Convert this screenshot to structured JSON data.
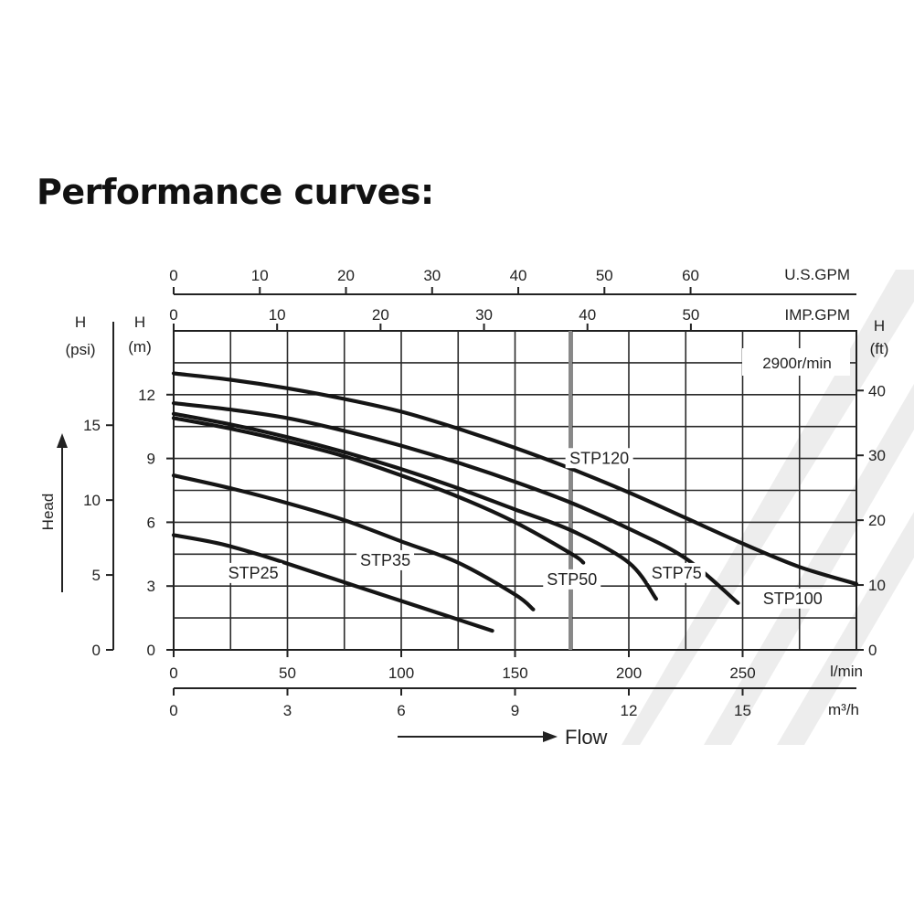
{
  "title": "Performance curves:",
  "chart_data": {
    "type": "line",
    "speed_label": "2900r/min",
    "x_axes": {
      "lmin": {
        "label": "l/min",
        "ticks": [
          0,
          50,
          100,
          150,
          200,
          250
        ],
        "range": [
          0,
          300
        ]
      },
      "m3h": {
        "label": "m³/h",
        "ticks": [
          0,
          3,
          6,
          9,
          12,
          15
        ],
        "range": [
          0,
          18
        ]
      },
      "usgpm": {
        "label": "U.S.GPM",
        "ticks": [
          0,
          10,
          20,
          30,
          40,
          50,
          60
        ],
        "range": [
          0,
          79.25
        ]
      },
      "impgpm": {
        "label": "IMP.GPM",
        "ticks": [
          0,
          10,
          20,
          30,
          40,
          50
        ],
        "range": [
          0,
          66
        ]
      }
    },
    "y_axes": {
      "m": {
        "label_top": "H",
        "label_unit": "(m)",
        "ticks": [
          0,
          3,
          6,
          9,
          12
        ],
        "range": [
          0,
          15
        ]
      },
      "psi": {
        "label_top": "H",
        "label_unit": "(psi)",
        "ticks": [
          0,
          5,
          10,
          15
        ],
        "range": [
          0,
          21.3
        ]
      },
      "ft": {
        "label_top": "H",
        "label_unit": "(ft)",
        "ticks": [
          0,
          10,
          20,
          30,
          40
        ],
        "range": [
          0,
          49.2
        ]
      }
    },
    "axis_titles": {
      "y": "Head",
      "x": "Flow"
    },
    "series": [
      {
        "name": "STP25",
        "x": [
          0,
          20,
          40,
          60,
          80,
          100,
          120,
          140
        ],
        "y": [
          5.4,
          5.0,
          4.4,
          3.7,
          3.0,
          2.3,
          1.6,
          0.9
        ]
      },
      {
        "name": "STP35",
        "x": [
          0,
          25,
          50,
          75,
          100,
          125,
          150,
          158
        ],
        "y": [
          8.2,
          7.6,
          6.9,
          6.1,
          5.1,
          4.1,
          2.6,
          1.9
        ]
      },
      {
        "name": "STP50",
        "x": [
          0,
          25,
          50,
          75,
          100,
          125,
          150,
          175,
          180
        ],
        "y": [
          10.9,
          10.4,
          9.8,
          9.1,
          8.2,
          7.2,
          6.0,
          4.5,
          4.1
        ]
      },
      {
        "name": "STP75",
        "x": [
          0,
          25,
          50,
          75,
          100,
          125,
          150,
          175,
          200,
          212
        ],
        "y": [
          11.1,
          10.6,
          10.0,
          9.3,
          8.5,
          7.6,
          6.6,
          5.6,
          4.1,
          2.4
        ]
      },
      {
        "name": "STP100",
        "x": [
          0,
          25,
          50,
          75,
          100,
          125,
          150,
          175,
          200,
          225,
          248
        ],
        "y": [
          11.6,
          11.3,
          10.9,
          10.3,
          9.6,
          8.8,
          7.9,
          6.9,
          5.7,
          4.3,
          2.2
        ]
      },
      {
        "name": "STP120",
        "x": [
          0,
          25,
          50,
          75,
          100,
          125,
          150,
          175,
          200,
          225,
          250,
          275,
          300
        ],
        "y": [
          13.0,
          12.7,
          12.3,
          11.8,
          11.2,
          10.4,
          9.5,
          8.5,
          7.4,
          6.2,
          5.0,
          3.9,
          3.1
        ]
      }
    ]
  }
}
